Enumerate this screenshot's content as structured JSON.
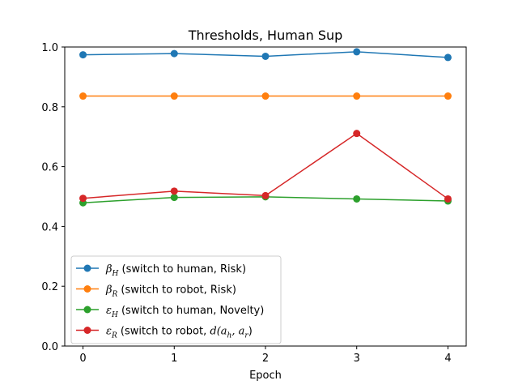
{
  "chart_data": {
    "type": "line",
    "title": "Thresholds, Human Sup",
    "xlabel": "Epoch",
    "ylabel": "",
    "x": [
      0,
      1,
      2,
      3,
      4
    ],
    "xticks": [
      "0",
      "1",
      "2",
      "3",
      "4"
    ],
    "xlim": [
      -0.2,
      4.2
    ],
    "ylim": [
      0.0,
      1.0
    ],
    "yticks": [
      "0.0",
      "0.2",
      "0.4",
      "0.6",
      "0.8",
      "1.0"
    ],
    "grid": false,
    "legend_position": "lower-left",
    "series": [
      {
        "sym": "β",
        "sub": "H",
        "rest": " (switch to human, Risk)",
        "color": "#1f77b4",
        "values": [
          0.974,
          0.978,
          0.969,
          0.984,
          0.965
        ]
      },
      {
        "sym": "β",
        "sub": "R",
        "rest": " (switch to robot, Risk)",
        "color": "#ff7f0e",
        "values": [
          0.836,
          0.836,
          0.836,
          0.836,
          0.836
        ]
      },
      {
        "sym": "ε",
        "sub": "H",
        "rest": " (switch to human, Novelty)",
        "color": "#2ca02c",
        "values": [
          0.479,
          0.497,
          0.499,
          0.492,
          0.485
        ]
      },
      {
        "sym": "ε",
        "sub": "R",
        "rest": " (switch to robot, d(a_h, a_r))",
        "color": "#d62728",
        "values": [
          0.494,
          0.518,
          0.503,
          0.711,
          0.492
        ]
      }
    ]
  }
}
